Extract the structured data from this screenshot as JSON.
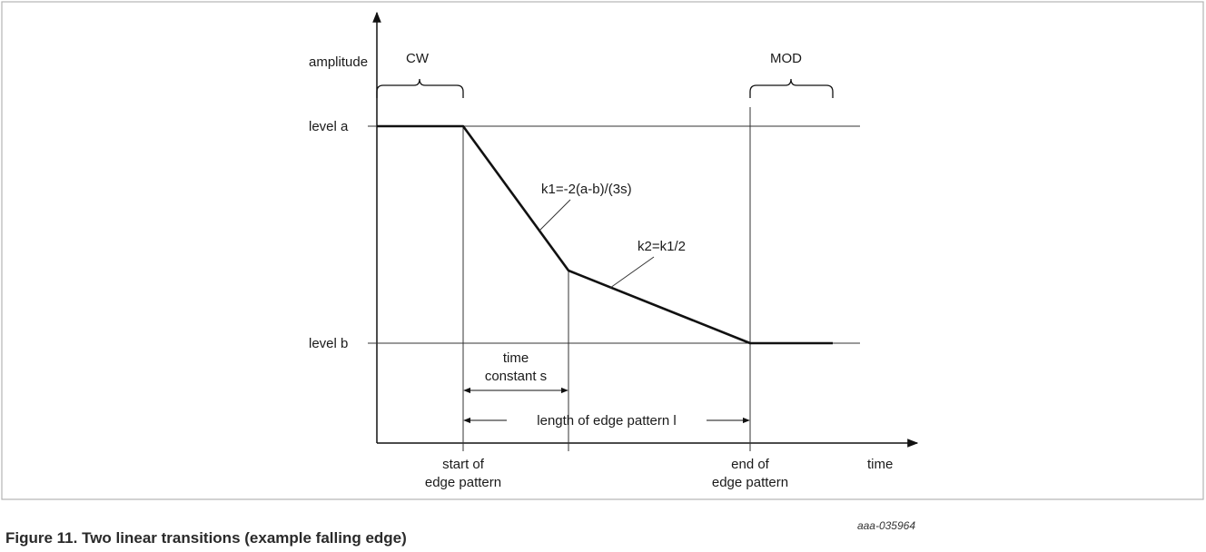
{
  "axes": {
    "y_label": "amplitude",
    "x_label": "time"
  },
  "levels": {
    "a_label": "level a",
    "b_label": "level b"
  },
  "regions": {
    "cw_label": "CW",
    "mod_label": "MOD"
  },
  "slopes": {
    "k1_label": "k1=-2(a-b)/(3s)",
    "k2_label": "k2=k1/2"
  },
  "dimensions": {
    "time_constant_line1": "time",
    "time_constant_line2": "constant s",
    "edge_length_label": "length of edge pattern l"
  },
  "markers": {
    "start_line1": "start of",
    "start_line2": "edge pattern",
    "end_line1": "end of",
    "end_line2": "edge pattern"
  },
  "figure": {
    "doc_id": "aaa-035964",
    "caption": "Figure 11.  Two linear transitions (example falling edge)"
  }
}
